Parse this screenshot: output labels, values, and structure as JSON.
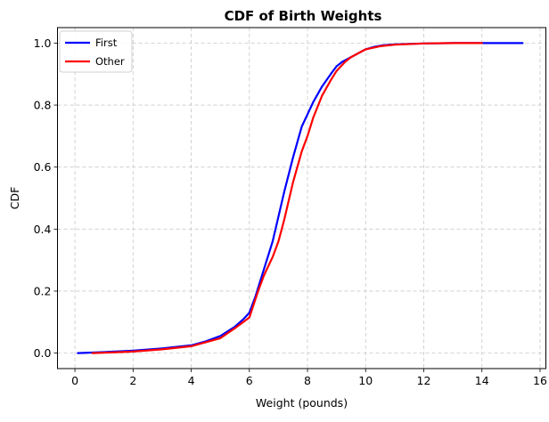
{
  "chart_data": {
    "type": "line",
    "title": "CDF of Birth Weights",
    "xlabel": "Weight (pounds)",
    "ylabel": "CDF",
    "xlim": [
      -0.6,
      16.2
    ],
    "ylim": [
      -0.05,
      1.05
    ],
    "x_ticks": [
      0,
      2,
      4,
      6,
      8,
      10,
      12,
      14,
      16
    ],
    "y_ticks": [
      0.0,
      0.2,
      0.4,
      0.6,
      0.8,
      1.0
    ],
    "x_tick_labels": [
      "0",
      "2",
      "4",
      "6",
      "8",
      "10",
      "12",
      "14",
      "16"
    ],
    "y_tick_labels": [
      "0.0",
      "0.2",
      "0.4",
      "0.6",
      "0.8",
      "1.0"
    ],
    "grid": true,
    "legend_position": "upper-left",
    "series": [
      {
        "name": "First",
        "color": "#0000ff",
        "x": [
          0.1,
          1.0,
          2.0,
          3.0,
          4.0,
          4.5,
          5.0,
          5.5,
          5.8,
          6.0,
          6.2,
          6.5,
          6.8,
          7.0,
          7.2,
          7.5,
          7.8,
          8.0,
          8.2,
          8.5,
          8.8,
          9.0,
          9.2,
          9.5,
          9.8,
          10.0,
          10.3,
          10.6,
          11.0,
          12.0,
          13.0,
          14.0,
          15.4
        ],
        "y": [
          0.0,
          0.003,
          0.008,
          0.015,
          0.025,
          0.038,
          0.055,
          0.085,
          0.11,
          0.13,
          0.18,
          0.27,
          0.36,
          0.44,
          0.52,
          0.63,
          0.73,
          0.77,
          0.81,
          0.86,
          0.9,
          0.925,
          0.94,
          0.955,
          0.97,
          0.98,
          0.988,
          0.993,
          0.996,
          0.999,
          1.0,
          1.0,
          1.0
        ]
      },
      {
        "name": "Other",
        "color": "#ff0000",
        "x": [
          0.6,
          1.0,
          2.0,
          3.0,
          4.0,
          5.0,
          5.5,
          6.0,
          6.3,
          6.5,
          6.8,
          7.0,
          7.2,
          7.5,
          7.8,
          8.0,
          8.2,
          8.5,
          8.8,
          9.0,
          9.3,
          9.5,
          9.8,
          10.0,
          10.5,
          11.0,
          12.0,
          13.0,
          14.0
        ],
        "y": [
          0.0,
          0.001,
          0.005,
          0.012,
          0.022,
          0.048,
          0.08,
          0.115,
          0.2,
          0.25,
          0.31,
          0.36,
          0.43,
          0.55,
          0.65,
          0.7,
          0.76,
          0.83,
          0.88,
          0.91,
          0.94,
          0.955,
          0.97,
          0.98,
          0.99,
          0.995,
          0.999,
          1.0,
          1.0
        ]
      }
    ]
  }
}
